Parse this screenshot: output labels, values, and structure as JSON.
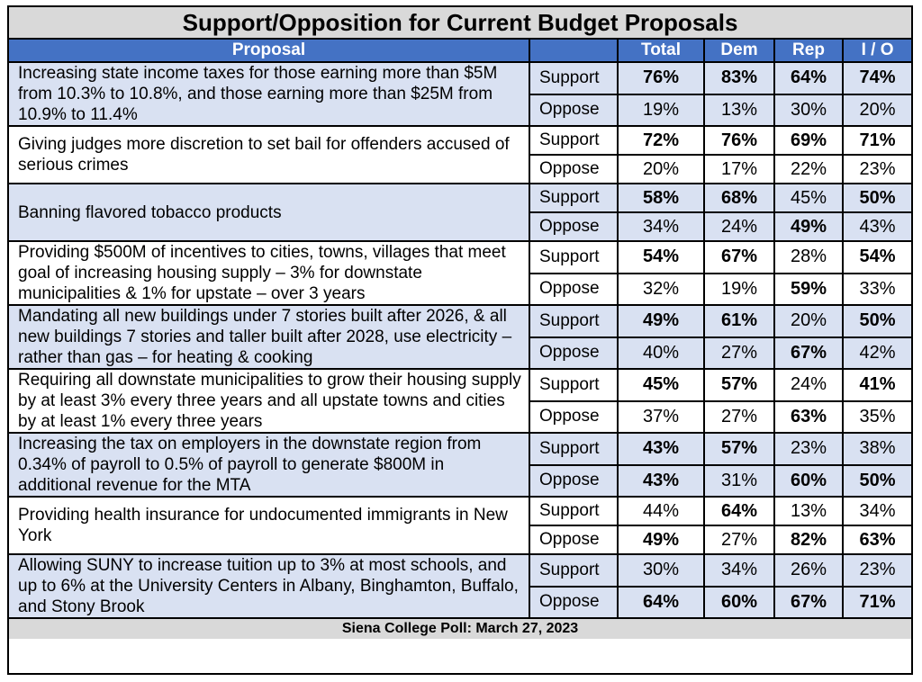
{
  "chart_data": {
    "type": "table",
    "title": "Support/Opposition for Current Budget Proposals",
    "columns": [
      "Proposal",
      "",
      "Total",
      "Dem",
      "Rep",
      "I / O"
    ],
    "rows": [
      {
        "proposal": "Increasing state income taxes for those earning more than $5M from 10.3% to 10.8%, and those earning more than $25M from 10.9% to 11.4%",
        "support": {
          "label": "Support",
          "values": [
            "76%",
            "83%",
            "64%",
            "74%"
          ],
          "bold": [
            true,
            true,
            true,
            true
          ]
        },
        "oppose": {
          "label": "Oppose",
          "values": [
            "19%",
            "13%",
            "30%",
            "20%"
          ],
          "bold": [
            false,
            false,
            false,
            false
          ]
        }
      },
      {
        "proposal": "Giving judges more discretion to set bail for offenders accused of serious crimes",
        "support": {
          "label": "Support",
          "values": [
            "72%",
            "76%",
            "69%",
            "71%"
          ],
          "bold": [
            true,
            true,
            true,
            true
          ]
        },
        "oppose": {
          "label": "Oppose",
          "values": [
            "20%",
            "17%",
            "22%",
            "23%"
          ],
          "bold": [
            false,
            false,
            false,
            false
          ]
        }
      },
      {
        "proposal": "Banning flavored tobacco products",
        "support": {
          "label": "Support",
          "values": [
            "58%",
            "68%",
            "45%",
            "50%"
          ],
          "bold": [
            true,
            true,
            false,
            true
          ]
        },
        "oppose": {
          "label": "Oppose",
          "values": [
            "34%",
            "24%",
            "49%",
            "43%"
          ],
          "bold": [
            false,
            false,
            true,
            false
          ]
        }
      },
      {
        "proposal": "Providing $500M of incentives to cities, towns, villages that meet goal of increasing housing supply – 3% for downstate municipalities & 1% for upstate – over 3 years",
        "support": {
          "label": "Support",
          "values": [
            "54%",
            "67%",
            "28%",
            "54%"
          ],
          "bold": [
            true,
            true,
            false,
            true
          ]
        },
        "oppose": {
          "label": "Oppose",
          "values": [
            "32%",
            "19%",
            "59%",
            "33%"
          ],
          "bold": [
            false,
            false,
            true,
            false
          ]
        }
      },
      {
        "proposal": "Mandating all new buildings under 7 stories built after 2026, & all new buildings 7 stories and taller built after 2028, use electricity – rather than gas – for heating & cooking",
        "support": {
          "label": "Support",
          "values": [
            "49%",
            "61%",
            "20%",
            "50%"
          ],
          "bold": [
            true,
            true,
            false,
            true
          ]
        },
        "oppose": {
          "label": "Oppose",
          "values": [
            "40%",
            "27%",
            "67%",
            "42%"
          ],
          "bold": [
            false,
            false,
            true,
            false
          ]
        }
      },
      {
        "proposal": "Requiring all downstate municipalities to grow their housing supply by at least 3% every three years and all upstate towns and cities by at least 1% every three years",
        "support": {
          "label": "Support",
          "values": [
            "45%",
            "57%",
            "24%",
            "41%"
          ],
          "bold": [
            true,
            true,
            false,
            true
          ]
        },
        "oppose": {
          "label": "Oppose",
          "values": [
            "37%",
            "27%",
            "63%",
            "35%"
          ],
          "bold": [
            false,
            false,
            true,
            false
          ]
        }
      },
      {
        "proposal": "Increasing the tax on employers in the downstate region from 0.34% of payroll to 0.5% of payroll to generate $800M in additional revenue for the MTA",
        "support": {
          "label": "Support",
          "values": [
            "43%",
            "57%",
            "23%",
            "38%"
          ],
          "bold": [
            true,
            true,
            false,
            false
          ]
        },
        "oppose": {
          "label": "Oppose",
          "values": [
            "43%",
            "31%",
            "60%",
            "50%"
          ],
          "bold": [
            true,
            false,
            true,
            true
          ]
        }
      },
      {
        "proposal": "Providing health insurance for undocumented immigrants in New York",
        "support": {
          "label": "Support",
          "values": [
            "44%",
            "64%",
            "13%",
            "34%"
          ],
          "bold": [
            false,
            true,
            false,
            false
          ]
        },
        "oppose": {
          "label": "Oppose",
          "values": [
            "49%",
            "27%",
            "82%",
            "63%"
          ],
          "bold": [
            true,
            false,
            true,
            true
          ]
        }
      },
      {
        "proposal": "Allowing SUNY to increase tuition up to 3% at most schools, and up to 6% at the University Centers in Albany, Binghamton, Buffalo, and Stony Brook",
        "support": {
          "label": "Support",
          "values": [
            "30%",
            "34%",
            "26%",
            "23%"
          ],
          "bold": [
            false,
            false,
            false,
            false
          ]
        },
        "oppose": {
          "label": "Oppose",
          "values": [
            "64%",
            "60%",
            "67%",
            "71%"
          ],
          "bold": [
            true,
            true,
            true,
            true
          ]
        }
      }
    ],
    "footer": "Siena College Poll: March 27, 2023"
  },
  "colors": {
    "header_blue": "#4472c4",
    "row_blue": "#d9e1f2",
    "title_gray": "#d9d9d9"
  }
}
